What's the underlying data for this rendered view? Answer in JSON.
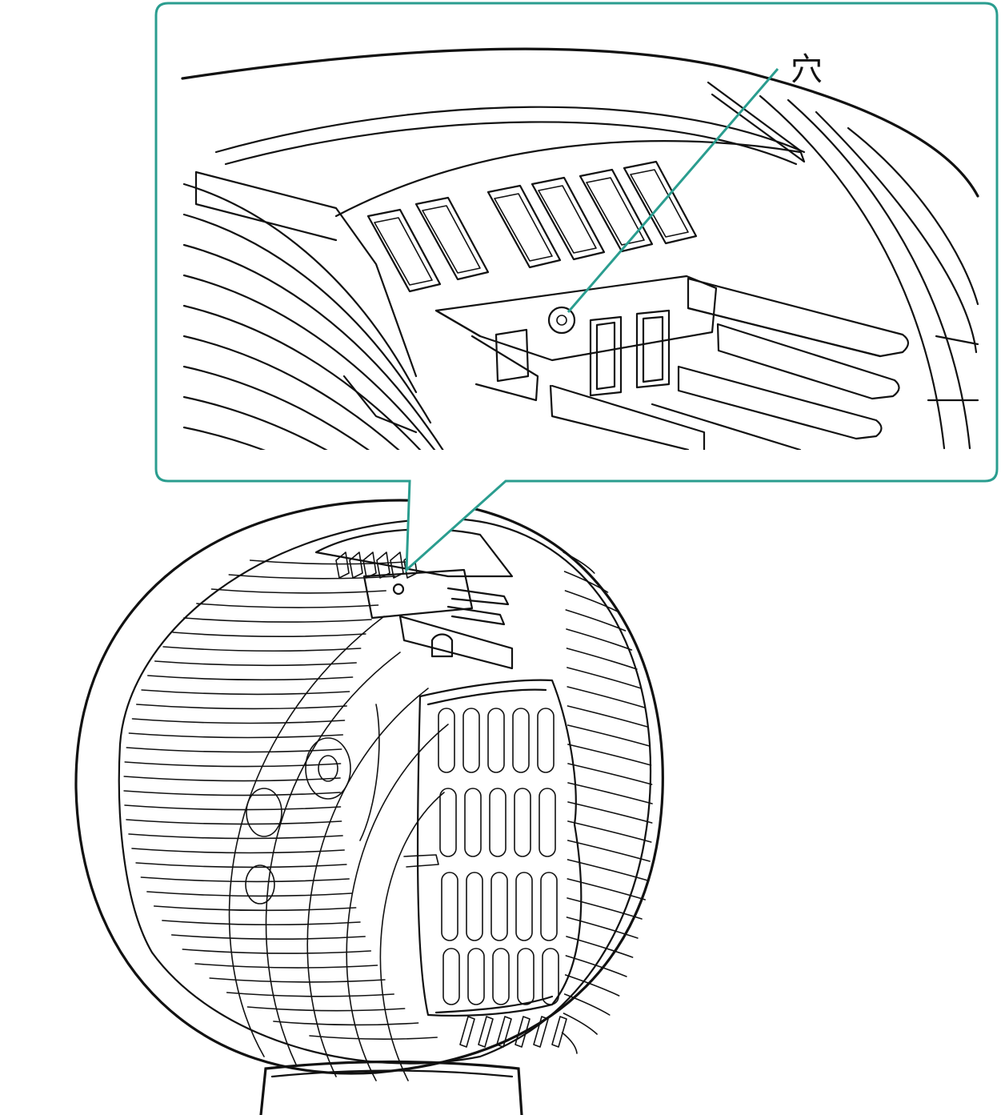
{
  "figure": {
    "callout_label": "穴",
    "accent_color": "#2a9d8f",
    "line_color": "#111111",
    "background": "#ffffff"
  },
  "icons": {
    "callout": "magnified-detail-callout",
    "hole": "hole-marker-icon",
    "fan": "circulator-fan-illustration"
  }
}
